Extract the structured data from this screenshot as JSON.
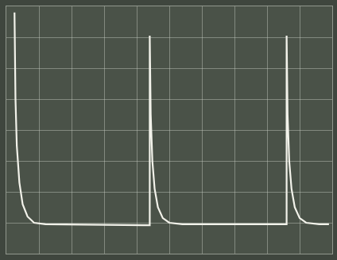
{
  "chart_data": {
    "type": "line",
    "x": [
      0.25,
      0.28,
      0.32,
      0.4,
      0.5,
      0.65,
      0.85,
      1.2,
      4.2,
      4.4,
      4.4,
      4.43,
      4.48,
      4.55,
      4.65,
      4.8,
      5.0,
      5.4,
      8.4,
      8.6,
      8.6,
      8.63,
      8.68,
      8.75,
      8.85,
      9.0,
      9.2,
      9.6,
      9.9
    ],
    "values": [
      7.8,
      5.0,
      3.5,
      2.3,
      1.6,
      1.2,
      1.0,
      0.95,
      0.92,
      0.92,
      7.05,
      4.5,
      3.0,
      2.1,
      1.5,
      1.15,
      1.0,
      0.95,
      0.95,
      0.95,
      7.05,
      4.5,
      3.0,
      2.1,
      1.5,
      1.15,
      1.0,
      0.95,
      0.95
    ],
    "color": "#f2f2ea",
    "xlim": [
      0,
      10
    ],
    "ylim": [
      0,
      8
    ],
    "xticks": [
      0,
      1,
      2,
      3,
      4,
      5,
      6,
      7,
      8,
      9,
      10
    ],
    "yticks": [
      0,
      1,
      2,
      3,
      4,
      5,
      6,
      7,
      8
    ],
    "grid": true,
    "tick_labels": false
  }
}
